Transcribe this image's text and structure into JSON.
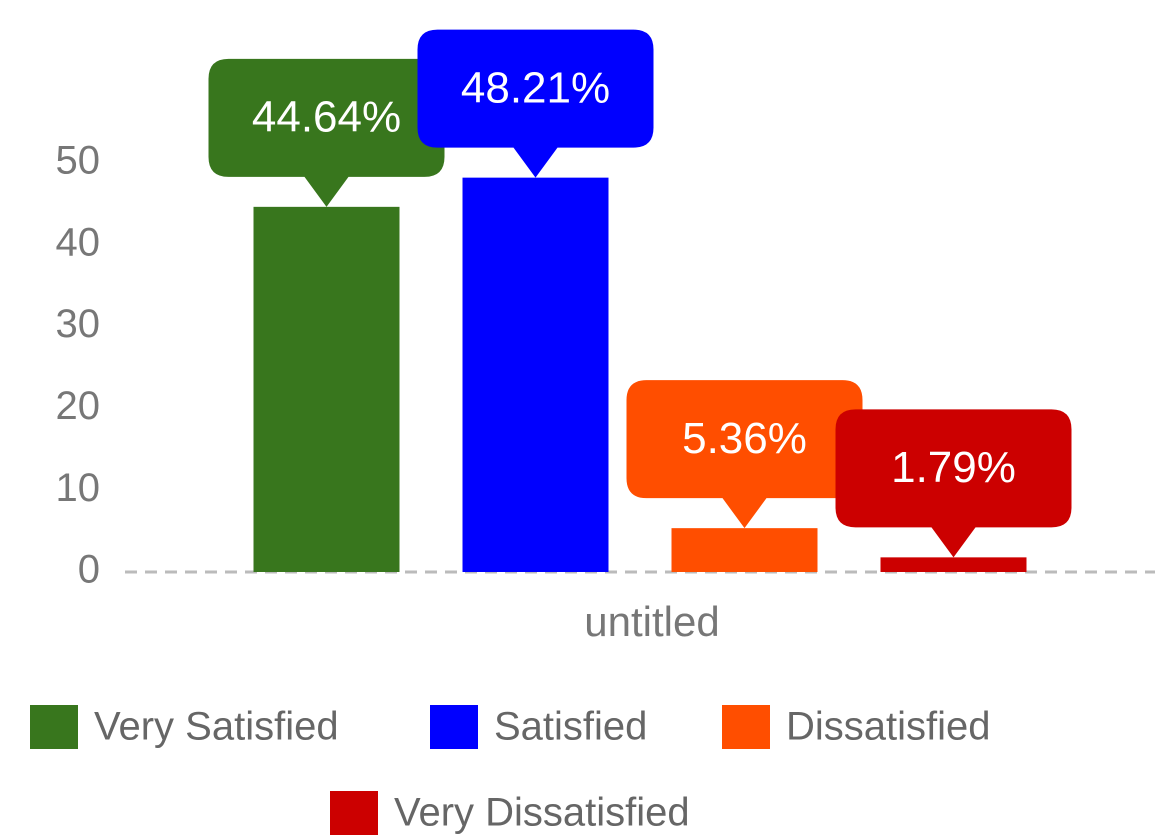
{
  "chart_data": {
    "type": "bar",
    "categories": [
      "untitled"
    ],
    "series": [
      {
        "name": "Very Satisfied",
        "color": "#38761d",
        "values": [
          44.64
        ],
        "value_labels": [
          "44.64%"
        ]
      },
      {
        "name": "Satisfied",
        "color": "#0000ff",
        "values": [
          48.21
        ],
        "value_labels": [
          "48.21%"
        ]
      },
      {
        "name": "Dissatisfied",
        "color": "#ff4e00",
        "values": [
          5.36
        ],
        "value_labels": [
          "5.36%"
        ]
      },
      {
        "name": "Very Dissatisfied",
        "color": "#cc0000",
        "values": [
          1.79
        ],
        "value_labels": [
          "1.79%"
        ]
      }
    ],
    "ylim": [
      0,
      70
    ],
    "yticks": [
      0,
      10,
      20,
      30,
      40,
      50
    ],
    "grid": false,
    "legend": "bottom"
  }
}
